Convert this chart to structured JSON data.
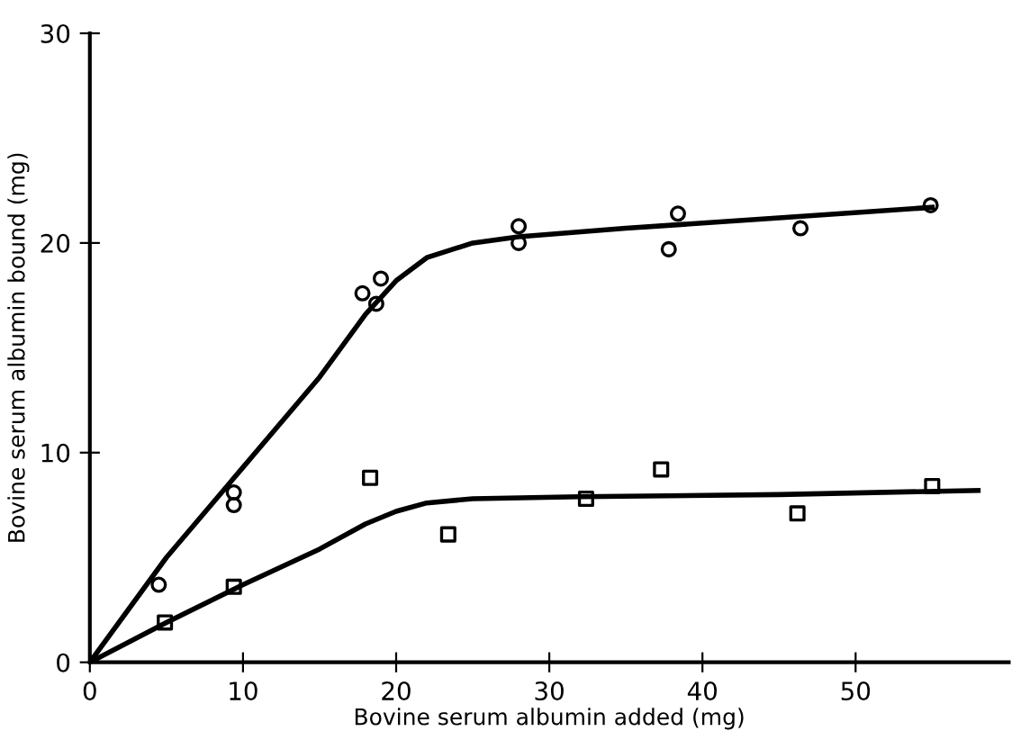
{
  "chart_data": {
    "type": "scatter",
    "xlabel": "Bovine serum albumin added (mg)",
    "ylabel": "Bovine serum albumin bound (mg)",
    "xlim": [
      0,
      60
    ],
    "ylim": [
      0,
      30
    ],
    "xticks": [
      0,
      10,
      20,
      30,
      40,
      50
    ],
    "yticks": [
      0,
      10,
      20,
      30
    ],
    "grid": false,
    "series": [
      {
        "marker": "circle",
        "color": "#000000",
        "x": [
          4.5,
          9.4,
          9.4,
          17.8,
          18.7,
          19.0,
          28.0,
          28.0,
          37.8,
          38.4,
          46.4,
          54.9
        ],
        "values": [
          3.7,
          8.1,
          7.5,
          17.6,
          17.1,
          18.3,
          20.8,
          20.0,
          19.7,
          21.4,
          20.7,
          21.8
        ]
      },
      {
        "marker": "square",
        "color": "#000000",
        "x": [
          4.9,
          9.4,
          18.3,
          23.4,
          32.4,
          37.3,
          46.2,
          55.0
        ],
        "values": [
          1.9,
          3.6,
          8.8,
          6.1,
          7.8,
          9.2,
          7.1,
          8.4
        ]
      },
      {
        "type": "line",
        "marker": "none",
        "line_style": "solid",
        "color": "#000000",
        "x": [
          0,
          5,
          10,
          15,
          18,
          20,
          22,
          25,
          28,
          35,
          45,
          55
        ],
        "values": [
          0,
          5.0,
          9.3,
          13.6,
          16.6,
          18.2,
          19.3,
          20.0,
          20.3,
          20.7,
          21.2,
          21.7
        ]
      },
      {
        "type": "line",
        "marker": "none",
        "line_style": "solid",
        "color": "#000000",
        "x": [
          0,
          5,
          10,
          15,
          18,
          20,
          22,
          25,
          32,
          45,
          58
        ],
        "values": [
          0,
          1.9,
          3.7,
          5.4,
          6.6,
          7.2,
          7.6,
          7.8,
          7.9,
          8.0,
          8.2
        ]
      }
    ]
  }
}
